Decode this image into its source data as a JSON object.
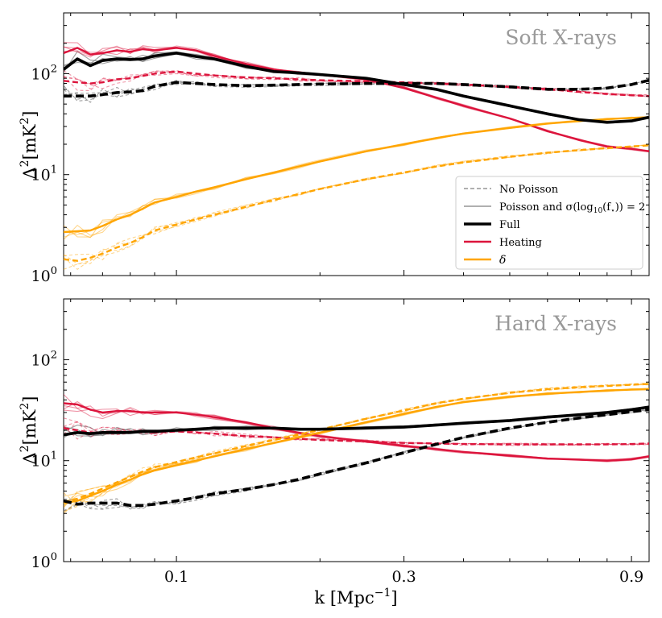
{
  "figure": {
    "xlabel_main": "k [Mpc",
    "xlabel_exp": "−1",
    "xlabel_close": "]",
    "ylabel_main": "Δ",
    "ylabel_sup": "2",
    "ylabel_rest": "[mK",
    "ylabel_sup2": "2",
    "ylabel_close": "]"
  },
  "legend": {
    "no_poisson": "No Poisson",
    "poisson": "Poisson and σ(log",
    "poisson_sub": "10",
    "poisson_tail": "(f",
    "poisson_star": "⋆",
    "poisson_end": ")) = 2",
    "full": "Full",
    "heating": "Heating",
    "delta": "δ"
  },
  "colors": {
    "full": "#000000",
    "heating": "#dc143c",
    "delta": "#ffa500",
    "realization_gray": "#808080",
    "title_gray": "#999999",
    "axis": "#000000"
  },
  "chart_data": [
    {
      "type": "line",
      "title": "Soft X-rays",
      "xscale": "log",
      "yscale": "log",
      "xlim": [
        0.058,
        0.98
      ],
      "ylim": [
        1,
        400
      ],
      "xticks": [
        0.1,
        0.3,
        0.9
      ],
      "xticklabels": [
        "0.1",
        "0.3",
        "0.9"
      ],
      "yticks": [
        1,
        10,
        100
      ],
      "yticklabels": [
        "10",
        "10",
        "10"
      ],
      "ytickexps": [
        "0",
        "1",
        "2"
      ],
      "x": [
        0.058,
        0.062,
        0.066,
        0.07,
        0.075,
        0.08,
        0.085,
        0.09,
        0.1,
        0.11,
        0.12,
        0.14,
        0.16,
        0.18,
        0.2,
        0.25,
        0.3,
        0.35,
        0.4,
        0.5,
        0.6,
        0.7,
        0.8,
        0.9,
        0.98
      ],
      "series": [
        {
          "name": "Full (Poisson)",
          "style": "solid",
          "color_key": "full",
          "width": 3.6,
          "values": [
            110,
            140,
            120,
            135,
            140,
            138,
            140,
            150,
            160,
            148,
            140,
            118,
            105,
            102,
            98,
            90,
            78,
            70,
            60,
            48,
            40,
            35,
            33,
            34,
            37
          ]
        },
        {
          "name": "Full (No Poisson)",
          "style": "dashed",
          "color_key": "full",
          "width": 3.6,
          "values": [
            60,
            60,
            60,
            62,
            65,
            66,
            68,
            75,
            82,
            80,
            78,
            76,
            77,
            78,
            79,
            80,
            80,
            80,
            78,
            74,
            70,
            70,
            72,
            78,
            86
          ]
        },
        {
          "name": "Heating (Poisson)",
          "style": "solid",
          "color_key": "heating",
          "width": 2.4,
          "values": [
            160,
            180,
            155,
            160,
            170,
            165,
            175,
            170,
            180,
            170,
            150,
            125,
            110,
            103,
            98,
            88,
            72,
            58,
            48,
            36,
            27,
            22,
            19,
            18,
            17
          ]
        },
        {
          "name": "Heating (No Poisson)",
          "style": "dashed",
          "color_key": "heating",
          "width": 2.4,
          "values": [
            85,
            82,
            80,
            82,
            88,
            90,
            95,
            100,
            105,
            100,
            96,
            92,
            90,
            88,
            86,
            84,
            82,
            80,
            78,
            74,
            70,
            66,
            63,
            61,
            60
          ]
        },
        {
          "name": "δ (Poisson)",
          "style": "solid",
          "color_key": "delta",
          "width": 2.4,
          "values": [
            2.7,
            2.75,
            2.8,
            3.1,
            3.6,
            4.0,
            4.6,
            5.3,
            6.0,
            6.8,
            7.5,
            9.0,
            10.5,
            12.0,
            13.5,
            17.0,
            20.0,
            23.0,
            25.5,
            29.0,
            32.0,
            34.0,
            35.5,
            36.5,
            37.0
          ]
        },
        {
          "name": "δ (No Poisson)",
          "style": "dashed",
          "color_key": "delta",
          "width": 2.4,
          "values": [
            1.45,
            1.4,
            1.5,
            1.65,
            1.9,
            2.1,
            2.4,
            2.8,
            3.2,
            3.6,
            4.0,
            4.8,
            5.6,
            6.4,
            7.2,
            9.0,
            10.5,
            12.0,
            13.2,
            15.0,
            16.5,
            17.5,
            18.3,
            19.0,
            19.5
          ]
        }
      ]
    },
    {
      "type": "line",
      "title": "Hard X-rays",
      "xscale": "log",
      "yscale": "log",
      "xlim": [
        0.058,
        0.98
      ],
      "ylim": [
        1,
        400
      ],
      "xticks": [
        0.1,
        0.3,
        0.9
      ],
      "xticklabels": [
        "0.1",
        "0.3",
        "0.9"
      ],
      "yticks": [
        1,
        10,
        100
      ],
      "yticklabels": [
        "10",
        "10",
        "10"
      ],
      "ytickexps": [
        "0",
        "1",
        "2"
      ],
      "x": [
        0.058,
        0.062,
        0.066,
        0.07,
        0.075,
        0.08,
        0.085,
        0.09,
        0.1,
        0.11,
        0.12,
        0.14,
        0.16,
        0.18,
        0.2,
        0.25,
        0.3,
        0.35,
        0.4,
        0.5,
        0.6,
        0.7,
        0.8,
        0.9,
        0.98
      ],
      "series": [
        {
          "name": "Full (Poisson)",
          "style": "solid",
          "color_key": "full",
          "width": 3.6,
          "values": [
            18,
            19,
            18.5,
            19,
            19,
            19,
            19.5,
            19.5,
            20,
            20.5,
            21,
            21,
            21,
            20.5,
            20.5,
            21,
            21.5,
            22.5,
            23.5,
            25,
            27,
            28.5,
            30,
            32,
            34
          ]
        },
        {
          "name": "Full (No Poisson)",
          "style": "dashed",
          "color_key": "full",
          "width": 3.6,
          "values": [
            4.0,
            3.7,
            3.8,
            3.8,
            3.8,
            3.6,
            3.6,
            3.7,
            4.0,
            4.3,
            4.7,
            5.2,
            5.8,
            6.5,
            7.4,
            9.5,
            12.0,
            14.5,
            17.0,
            21.0,
            24.0,
            26.5,
            28.5,
            30.5,
            32.0
          ]
        },
        {
          "name": "Heating (Poisson)",
          "style": "solid",
          "color_key": "heating",
          "width": 2.4,
          "values": [
            37,
            36,
            32,
            30,
            31,
            31,
            30,
            30,
            30,
            28.5,
            27,
            24,
            21,
            19,
            17.5,
            15.5,
            14,
            13,
            12.2,
            11.2,
            10.5,
            10.2,
            10.0,
            10.3,
            11.0
          ]
        },
        {
          "name": "Heating (No Poisson)",
          "style": "dashed",
          "color_key": "heating",
          "width": 2.4,
          "values": [
            21,
            20,
            19,
            19,
            19.5,
            19,
            19.5,
            19,
            19.5,
            19,
            18.5,
            17.5,
            17,
            16.5,
            16,
            15.5,
            15,
            14.8,
            14.6,
            14.5,
            14.5,
            14.5,
            14.5,
            14.6,
            14.8
          ]
        },
        {
          "name": "δ (Poisson)",
          "style": "solid",
          "color_key": "delta",
          "width": 2.4,
          "values": [
            3.8,
            4.0,
            4.5,
            5.0,
            5.8,
            6.5,
            7.3,
            8.0,
            9.0,
            10.0,
            11.0,
            13.0,
            15.0,
            17.0,
            19.0,
            24.0,
            29.0,
            34.0,
            38.0,
            43.0,
            46.0,
            48.0,
            49.5,
            50.5,
            51.0
          ]
        },
        {
          "name": "δ (No Poisson)",
          "style": "dashed",
          "color_key": "delta",
          "width": 2.4,
          "values": [
            3.9,
            4.2,
            4.7,
            5.3,
            6.1,
            6.9,
            7.8,
            8.6,
            9.7,
            10.8,
            11.8,
            14.0,
            16.0,
            18.0,
            20.3,
            26.0,
            31.5,
            37.0,
            41.0,
            47.0,
            51.0,
            53.5,
            55.0,
            56.5,
            57.5
          ]
        }
      ]
    }
  ]
}
